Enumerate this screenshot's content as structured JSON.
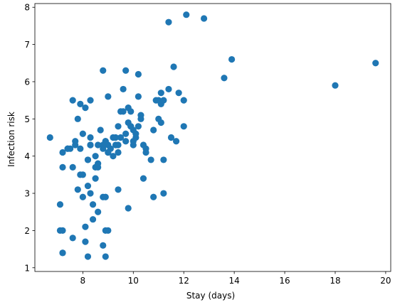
{
  "chart_data": {
    "type": "scatter",
    "xlabel": "Stay (days)",
    "ylabel": "Infection risk",
    "xlim": [
      6.1,
      20.2
    ],
    "ylim": [
      0.9,
      8.1
    ],
    "xticks": [
      8,
      10,
      12,
      14,
      16,
      18,
      20
    ],
    "yticks": [
      1,
      2,
      3,
      4,
      5,
      6,
      7,
      8
    ],
    "grid": false,
    "marker_color": "#1f77b4",
    "series": [
      {
        "x": [
          6.7,
          7.1,
          7.2,
          7.2,
          7.2,
          7.4,
          7.5,
          7.6,
          7.6,
          7.7,
          7.7,
          7.8,
          7.9,
          7.9,
          8.0,
          8.0,
          8.1,
          8.1,
          8.2,
          8.2,
          8.3,
          8.3,
          8.3,
          8.4,
          8.5,
          8.5,
          8.5,
          8.6,
          8.6,
          8.6,
          8.7,
          8.8,
          8.8,
          8.8,
          8.9,
          8.9,
          9.0,
          9.0,
          9.0,
          9.1,
          9.2,
          9.3,
          9.3,
          9.4,
          9.4,
          9.4,
          9.5,
          9.6,
          9.6,
          9.7,
          9.7,
          9.8,
          9.8,
          9.9,
          9.9,
          10.0,
          10.0,
          10.1,
          10.1,
          10.2,
          10.2,
          10.3,
          10.3,
          10.4,
          10.5,
          10.7,
          10.8,
          10.9,
          11.0,
          11.1,
          11.1,
          11.2,
          11.2,
          11.4,
          11.5,
          11.6,
          11.7,
          11.8,
          12.0,
          12.1,
          11.4,
          12.0,
          12.8,
          13.6,
          13.9,
          18.0,
          19.6,
          7.1,
          7.2,
          7.2,
          7.6,
          8.0,
          8.1,
          8.2,
          8.4,
          8.6,
          8.8,
          8.9,
          8.9,
          9.0,
          9.4,
          9.8,
          10.0,
          10.4,
          10.8,
          11.1,
          7.4,
          7.9,
          8.2,
          8.3,
          8.8,
          9.0,
          9.2,
          9.5,
          9.7,
          9.9,
          10.2,
          10.5,
          11.0,
          11.2,
          7.8,
          8.3,
          8.9
        ],
        "y": [
          4.5,
          2.0,
          1.4,
          3.7,
          4.1,
          4.2,
          4.2,
          3.7,
          5.5,
          4.3,
          4.4,
          5.0,
          3.5,
          5.4,
          4.6,
          3.5,
          2.1,
          5.3,
          3.2,
          3.9,
          4.3,
          4.5,
          5.5,
          2.7,
          3.4,
          3.7,
          4.0,
          3.7,
          3.8,
          4.3,
          4.7,
          4.2,
          1.6,
          2.9,
          4.4,
          2.9,
          4.1,
          4.3,
          2.0,
          4.2,
          4.0,
          4.3,
          4.5,
          4.8,
          4.3,
          3.1,
          4.5,
          5.8,
          5.2,
          4.4,
          4.6,
          4.9,
          5.3,
          4.8,
          5.2,
          4.3,
          4.4,
          4.5,
          4.6,
          4.8,
          6.2,
          5.1,
          5.0,
          3.4,
          4.1,
          3.9,
          4.7,
          5.5,
          5.0,
          5.4,
          5.7,
          3.9,
          3.0,
          5.8,
          4.5,
          6.4,
          4.4,
          5.7,
          4.8,
          7.8,
          7.6,
          5.5,
          7.7,
          6.1,
          6.6,
          5.9,
          6.5,
          2.7,
          1.4,
          2.0,
          1.8,
          2.9,
          1.7,
          1.3,
          2.3,
          2.5,
          6.3,
          2.0,
          1.3,
          5.6,
          4.1,
          2.6,
          4.7,
          4.3,
          2.9,
          4.9,
          4.2,
          4.2,
          3.9,
          3.0,
          4.3,
          4.1,
          4.5,
          5.2,
          6.3,
          4.8,
          5.6,
          4.2,
          5.5,
          5.5,
          3.1,
          4.3,
          4.4
        ]
      }
    ]
  }
}
